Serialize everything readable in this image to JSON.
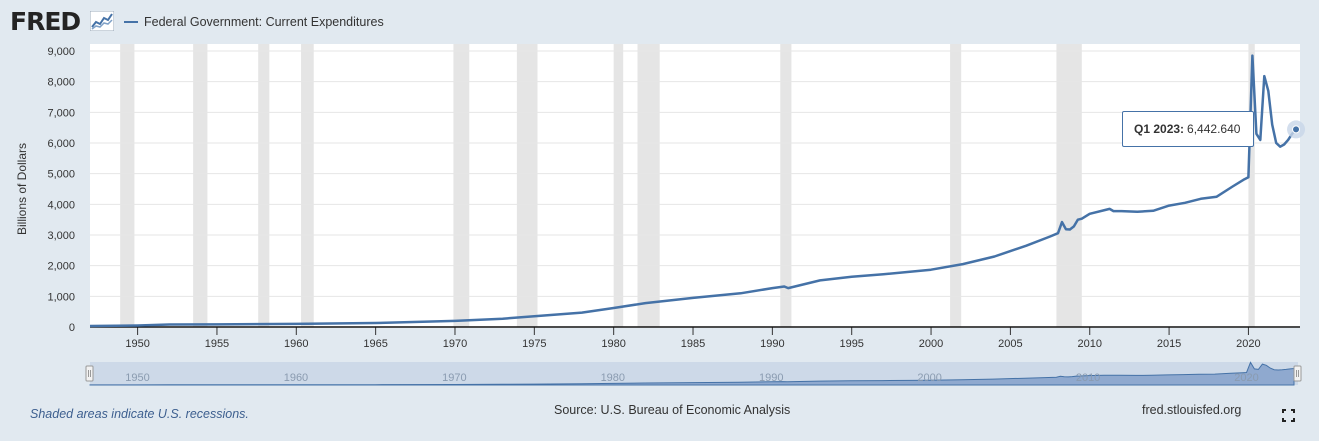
{
  "header": {
    "logo_text": "FRED",
    "logo_icon": "fred-chart-logo-icon",
    "legend_label": "Federal Government: Current Expenditures",
    "series_color": "#4572a7"
  },
  "footer": {
    "recession_note": "Shaded areas indicate U.S. recessions.",
    "source": "Source: U.S. Bureau of Economic Analysis",
    "url": "fred.stlouisfed.org",
    "fullscreen_icon": "fullscreen-icon"
  },
  "tooltip": {
    "date_label": "Q1 2023:",
    "value_label": "6,442.640"
  },
  "chart_data": {
    "type": "line",
    "title": "",
    "legend": [
      "Federal Government: Current Expenditures"
    ],
    "ylabel": "Billions of Dollars",
    "xlabel": "",
    "xlim": [
      1947.0,
      2023.25
    ],
    "ylim": [
      0,
      9000
    ],
    "yticks": [
      0,
      1000,
      2000,
      3000,
      4000,
      5000,
      6000,
      7000,
      8000,
      9000
    ],
    "ytick_labels": [
      "0",
      "1,000",
      "2,000",
      "3,000",
      "4,000",
      "5,000",
      "6,000",
      "7,000",
      "8,000",
      "9,000"
    ],
    "xticks": [
      1950,
      1955,
      1960,
      1965,
      1970,
      1975,
      1980,
      1985,
      1990,
      1995,
      2000,
      2005,
      2010,
      2015,
      2020
    ],
    "xtick_labels": [
      "1950",
      "1955",
      "1960",
      "1965",
      "1970",
      "1975",
      "1980",
      "1985",
      "1990",
      "1995",
      "2000",
      "2005",
      "2010",
      "2015",
      "2020"
    ],
    "navigator_labels": [
      "1950",
      "1960",
      "1970",
      "1980",
      "1990",
      "2000",
      "2010",
      "2020"
    ],
    "grid": true,
    "recessions": [
      [
        1948.9,
        1949.8
      ],
      [
        1953.5,
        1954.4
      ],
      [
        1957.6,
        1958.3
      ],
      [
        1960.3,
        1961.1
      ],
      [
        1969.9,
        1970.9
      ],
      [
        1973.9,
        1975.2
      ],
      [
        1980.0,
        1980.6
      ],
      [
        1981.5,
        1982.9
      ],
      [
        1990.5,
        1991.2
      ],
      [
        2001.2,
        2001.9
      ],
      [
        2007.9,
        2009.5
      ],
      [
        2020.0,
        2020.4
      ]
    ],
    "recession_color": "#e5e5e5",
    "series": [
      {
        "name": "Federal Government: Current Expenditures",
        "color": "#4572a7",
        "x": [
          1947.0,
          1950.0,
          1952.0,
          1955.0,
          1960.0,
          1965.0,
          1970.0,
          1973.0,
          1975.0,
          1978.0,
          1980.0,
          1982.0,
          1985.0,
          1988.0,
          1990.0,
          1990.75,
          1991.0,
          1993.0,
          1995.0,
          1997.0,
          2000.0,
          2002.0,
          2004.0,
          2006.0,
          2007.5,
          2008.0,
          2008.25,
          2008.5,
          2008.75,
          2009.0,
          2009.25,
          2009.5,
          2010.0,
          2011.0,
          2011.25,
          2011.5,
          2012.0,
          2013.0,
          2014.0,
          2015.0,
          2016.0,
          2017.0,
          2018.0,
          2019.0,
          2019.75,
          2020.0,
          2020.25,
          2020.5,
          2020.75,
          2021.0,
          2021.25,
          2021.5,
          2021.75,
          2022.0,
          2022.25,
          2022.5,
          2022.75,
          2023.0
        ],
        "y": [
          33,
          50,
          80,
          85,
          100,
          130,
          200,
          270,
          350,
          470,
          620,
          780,
          950,
          1100,
          1270,
          1320,
          1270,
          1520,
          1640,
          1720,
          1870,
          2050,
          2300,
          2650,
          2950,
          3060,
          3420,
          3190,
          3180,
          3280,
          3500,
          3530,
          3690,
          3820,
          3850,
          3780,
          3780,
          3760,
          3790,
          3960,
          4050,
          4180,
          4250,
          4580,
          4820,
          4880,
          8850,
          6300,
          6100,
          8180,
          7700,
          6600,
          6000,
          5880,
          5950,
          6100,
          6300,
          6442.64
        ]
      }
    ],
    "highlight": {
      "x": 2023.0,
      "y": 6442.64
    }
  }
}
